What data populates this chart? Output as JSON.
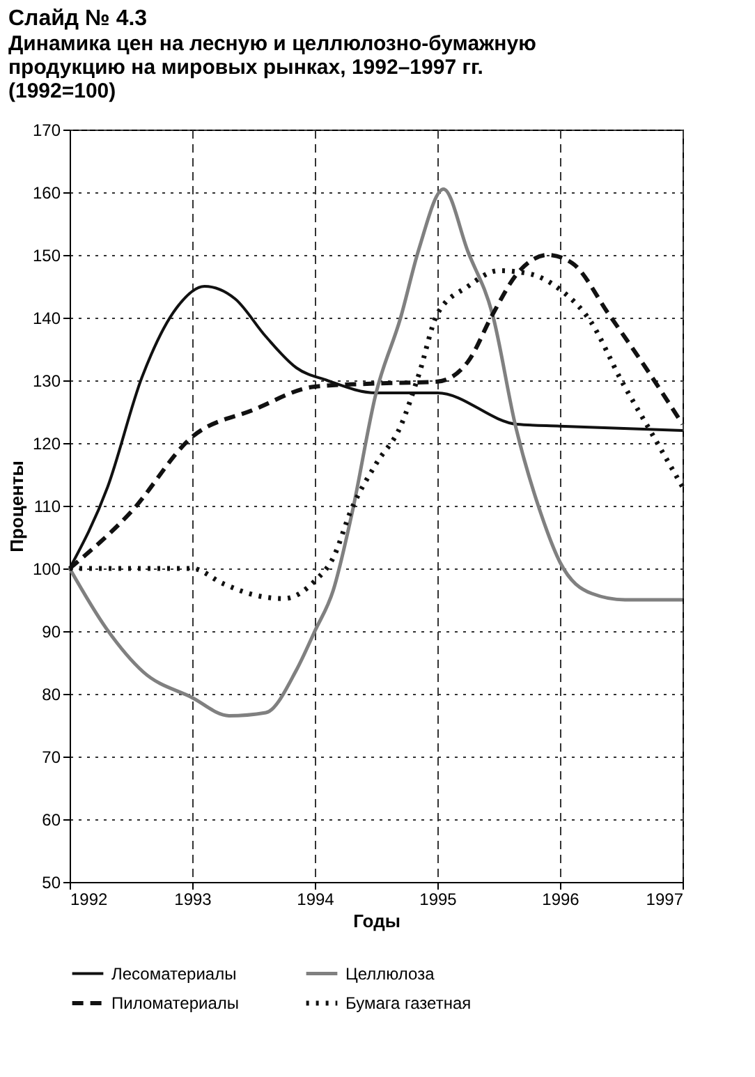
{
  "chart_data": {
    "type": "line",
    "title": "Слайд № 4.3",
    "subtitle": "Динамика цен на лесную и целлюлозно-бумажную продукцию на мировых рынках, 1992–1997 гг. (1992=100)",
    "xlabel": "Годы",
    "ylabel": "Проценты",
    "xlim": [
      1992,
      1997
    ],
    "xticks": [
      1992,
      1993,
      1994,
      1995,
      1996,
      1997
    ],
    "ylim": [
      50,
      170
    ],
    "yticks": [
      50,
      60,
      70,
      80,
      90,
      100,
      110,
      120,
      130,
      140,
      150,
      160,
      170
    ],
    "grid": true,
    "legend": "bottom",
    "marker": "none",
    "series": [
      {
        "name": "Лесоматериалы",
        "color": "#111111",
        "line_style": "solid",
        "x": [
          1992,
          1992.31,
          1992.59,
          1992.87,
          1993.1,
          1993.35,
          1993.6,
          1993.85,
          1994.1,
          1994.5,
          1995,
          1995.65,
          1996,
          1997
        ],
        "values": [
          100,
          113,
          130.5,
          141.5,
          145,
          143,
          137,
          132,
          130,
          128,
          128,
          123,
          122.7,
          122
        ]
      },
      {
        "name": "Целлюлоза",
        "color": "#808080",
        "line_style": "solid",
        "x": [
          1992,
          1992.3,
          1992.6,
          1993,
          1993.3,
          1993.6,
          1993.85,
          1994,
          1994.15,
          1994.3,
          1994.5,
          1994.7,
          1994.85,
          1995.05,
          1995.25,
          1995.45,
          1995.64,
          1995.84,
          1996,
          1996.26,
          1996.53,
          1997
        ],
        "values": [
          100,
          90.4,
          83.5,
          79.4,
          76.5,
          77,
          83.8,
          90,
          96.5,
          108.5,
          128,
          140,
          151,
          160.5,
          150.5,
          140.5,
          122.5,
          109,
          101,
          96,
          95,
          95
        ]
      },
      {
        "name": "Пиломатериалы",
        "color": "#111111",
        "line_style": "dashed",
        "x": [
          1992,
          1992.5,
          1993,
          1993.5,
          1994,
          1994.5,
          1995,
          1995.25,
          1995.45,
          1995.65,
          1995.9,
          1996.1,
          1996.4,
          1996.7,
          1997
        ],
        "values": [
          100,
          109,
          121,
          125.3,
          129,
          129.5,
          129.8,
          133,
          140.5,
          147,
          150,
          148.7,
          140.5,
          132,
          123
        ]
      },
      {
        "name": "Бумага газетная",
        "color": "#111111",
        "line_style": "dotted",
        "x": [
          1992,
          1993,
          1993.25,
          1993.5,
          1993.75,
          1994,
          1994.15,
          1994.3,
          1994.5,
          1994.7,
          1994.85,
          1995,
          1995.25,
          1995.5,
          1995.75,
          1996,
          1996.25,
          1996.5,
          1996.75,
          1997
        ],
        "values": [
          100,
          100,
          97.6,
          95.8,
          95.2,
          98,
          101.7,
          109.5,
          116.7,
          122.7,
          131,
          140.6,
          145,
          147.5,
          147,
          144.5,
          139.4,
          130,
          121.5,
          113
        ]
      }
    ]
  }
}
